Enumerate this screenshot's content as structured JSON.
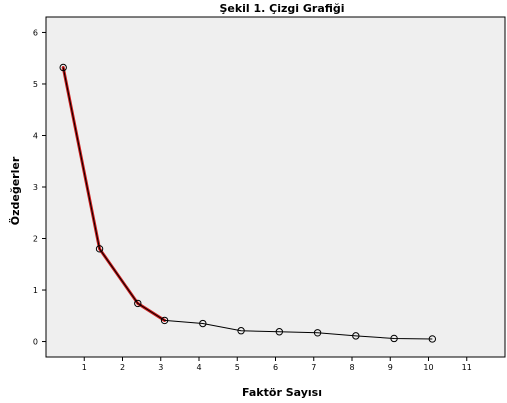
{
  "chart_data": {
    "type": "line",
    "title": "Şekil 1. Çizgi Grafiği",
    "xlabel": "Faktör Sayısı",
    "ylabel": "Özdeğerler",
    "xlim": [
      0,
      12
    ],
    "ylim": [
      -0.3,
      6.3
    ],
    "x_ticks": [
      1,
      2,
      3,
      4,
      5,
      6,
      7,
      8,
      9,
      10,
      11
    ],
    "y_ticks": [
      0,
      1,
      2,
      3,
      4,
      5,
      6
    ],
    "series": [
      {
        "x": [
          0.45,
          1.4,
          2.4,
          3.1,
          4.1,
          5.1,
          6.1,
          7.1,
          8.1,
          9.1,
          10.1
        ],
        "y": [
          5.32,
          1.8,
          0.74,
          0.41,
          0.35,
          0.21,
          0.19,
          0.17,
          0.11,
          0.06,
          0.05
        ],
        "color": "#000000",
        "marker": "circle"
      }
    ],
    "overlay": {
      "x": [
        0.45,
        1.4,
        2.4,
        3.1
      ],
      "y": [
        5.32,
        1.8,
        0.74,
        0.41
      ],
      "color": "#cc1a1a"
    },
    "background": "#efefef",
    "grid": false,
    "legend": "none"
  }
}
